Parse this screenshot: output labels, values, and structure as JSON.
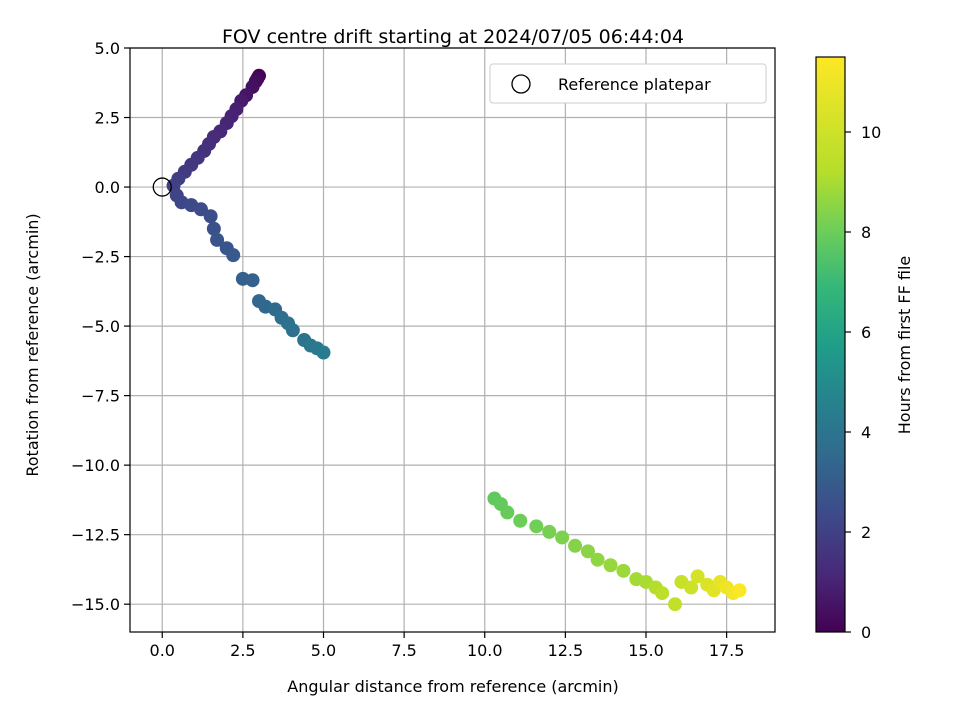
{
  "chart_data": {
    "type": "scatter",
    "title": "FOV centre drift starting at 2024/07/05 06:44:04",
    "xlabel": "Angular distance from reference (arcmin)",
    "ylabel": "Rotation from reference (arcmin)",
    "xlim": [
      -1.0,
      19.0
    ],
    "ylim": [
      -16.0,
      5.0
    ],
    "xticks": [
      "0.0",
      "2.5",
      "5.0",
      "7.5",
      "10.0",
      "12.5",
      "15.0",
      "17.5"
    ],
    "yticks": [
      "5.0",
      "2.5",
      "0.0",
      "−2.5",
      "−5.0",
      "−7.5",
      "−10.0",
      "−12.5",
      "−15.0"
    ],
    "grid": true,
    "legend": {
      "position": "top-right",
      "entries": [
        "Reference platepar"
      ]
    },
    "reference_point": {
      "x": 0.0,
      "y": 0.0
    },
    "colorbar": {
      "label": "Hours from first FF file",
      "colormap": "viridis",
      "range": [
        0,
        11.5
      ],
      "ticks": [
        "0",
        "2",
        "4",
        "6",
        "8",
        "10"
      ]
    },
    "series": [
      {
        "points": [
          [
            3.0,
            4.0,
            0.05
          ],
          [
            2.95,
            3.9,
            0.15
          ],
          [
            2.9,
            3.8,
            0.3
          ],
          [
            2.8,
            3.6,
            0.45
          ],
          [
            2.6,
            3.3,
            0.6
          ],
          [
            2.45,
            3.1,
            0.75
          ],
          [
            2.3,
            2.8,
            0.9
          ],
          [
            2.15,
            2.55,
            1.0
          ],
          [
            2.0,
            2.3,
            1.1
          ],
          [
            1.8,
            2.0,
            1.2
          ],
          [
            1.6,
            1.8,
            1.3
          ],
          [
            1.45,
            1.55,
            1.4
          ],
          [
            1.3,
            1.3,
            1.5
          ],
          [
            1.1,
            1.05,
            1.6
          ],
          [
            0.9,
            0.8,
            1.7
          ],
          [
            0.7,
            0.55,
            1.8
          ],
          [
            0.5,
            0.3,
            1.9
          ],
          [
            0.35,
            0.05,
            2.0
          ],
          [
            0.45,
            -0.3,
            2.1
          ],
          [
            0.6,
            -0.55,
            2.2
          ],
          [
            0.9,
            -0.65,
            2.3
          ],
          [
            1.2,
            -0.8,
            2.4
          ],
          [
            1.5,
            -1.05,
            2.5
          ],
          [
            1.6,
            -1.5,
            2.6
          ],
          [
            1.7,
            -1.9,
            2.7
          ],
          [
            2.0,
            -2.2,
            2.8
          ],
          [
            2.2,
            -2.45,
            2.9
          ],
          [
            2.5,
            -3.3,
            3.1
          ],
          [
            2.8,
            -3.35,
            3.2
          ],
          [
            3.0,
            -4.1,
            3.4
          ],
          [
            3.2,
            -4.3,
            3.5
          ],
          [
            3.5,
            -4.4,
            3.6
          ],
          [
            3.7,
            -4.7,
            3.7
          ],
          [
            3.9,
            -4.9,
            3.8
          ],
          [
            4.05,
            -5.15,
            3.9
          ],
          [
            4.4,
            -5.5,
            4.0
          ],
          [
            4.6,
            -5.7,
            4.1
          ],
          [
            4.8,
            -5.8,
            4.2
          ],
          [
            5.0,
            -5.95,
            4.3
          ],
          [
            10.3,
            -11.2,
            7.8
          ],
          [
            10.5,
            -11.4,
            7.85
          ],
          [
            10.7,
            -11.7,
            7.9
          ],
          [
            11.1,
            -12.0,
            8.0
          ],
          [
            11.6,
            -12.2,
            8.1
          ],
          [
            12.0,
            -12.4,
            8.2
          ],
          [
            12.4,
            -12.6,
            8.3
          ],
          [
            12.8,
            -12.9,
            8.4
          ],
          [
            13.2,
            -13.1,
            8.5
          ],
          [
            13.5,
            -13.4,
            8.6
          ],
          [
            13.9,
            -13.6,
            8.7
          ],
          [
            14.3,
            -13.8,
            8.8
          ],
          [
            14.7,
            -14.1,
            8.9
          ],
          [
            15.0,
            -14.2,
            9.0
          ],
          [
            15.3,
            -14.4,
            9.2
          ],
          [
            15.5,
            -14.6,
            9.4
          ],
          [
            15.9,
            -15.0,
            9.6
          ],
          [
            16.1,
            -14.2,
            9.8
          ],
          [
            16.4,
            -14.4,
            10.0
          ],
          [
            16.6,
            -14.0,
            10.2
          ],
          [
            16.9,
            -14.3,
            10.4
          ],
          [
            17.1,
            -14.5,
            10.6
          ],
          [
            17.3,
            -14.2,
            10.8
          ],
          [
            17.5,
            -14.4,
            11.0
          ],
          [
            17.7,
            -14.6,
            11.2
          ],
          [
            17.9,
            -14.5,
            11.4
          ]
        ]
      }
    ]
  }
}
